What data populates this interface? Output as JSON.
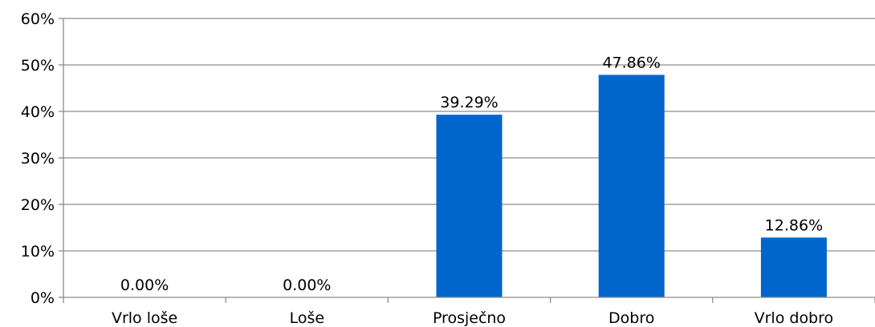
{
  "chart_data": {
    "type": "bar",
    "categories": [
      "Vrlo loše",
      "Loše",
      "Prosječno",
      "Dobro",
      "Vrlo dobro"
    ],
    "values": [
      0.0,
      0.0,
      39.29,
      47.86,
      12.86
    ],
    "data_labels": [
      "0.00%",
      "0.00%",
      "39.29%",
      "47.86%",
      "12.86%"
    ],
    "y_ticks": [
      "0%",
      "10%",
      "20%",
      "30%",
      "40%",
      "50%",
      "60%"
    ],
    "ylim": [
      0,
      60
    ],
    "y_unit": "%",
    "grid": true,
    "legend": "none",
    "bar_color": "#0066CC",
    "grid_color": "#8C8C8C"
  }
}
